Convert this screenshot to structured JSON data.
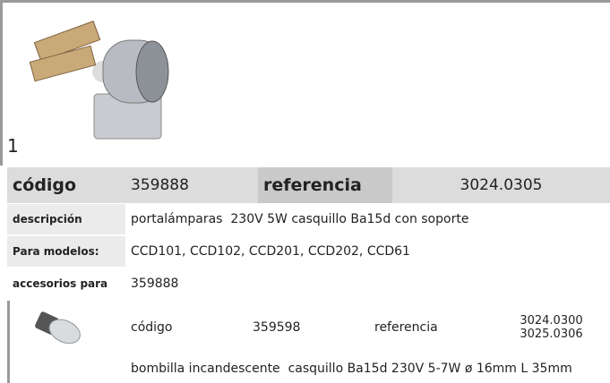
{
  "item_number": "1",
  "main": {
    "code_label": "código",
    "code": "359888",
    "ref_label": "referencia",
    "ref": "3024.0305"
  },
  "rows": [
    {
      "label": "descripción",
      "value": "portalámparas  230V 5W casquillo Ba15d con soporte"
    },
    {
      "label": "Para modelos:",
      "value": "CCD101, CCD102, CCD201, CCD202, CCD61"
    }
  ],
  "accessories": {
    "label": "accesorios para",
    "value": "359888",
    "items": [
      {
        "code_label": "código",
        "code": "359598",
        "ref_label": "referencia",
        "refs": [
          "3024.0300",
          "3025.0306"
        ],
        "description": "bombilla incandescente  casquillo Ba15d 230V 5-7W ø 16mm L 35mm"
      }
    ]
  }
}
